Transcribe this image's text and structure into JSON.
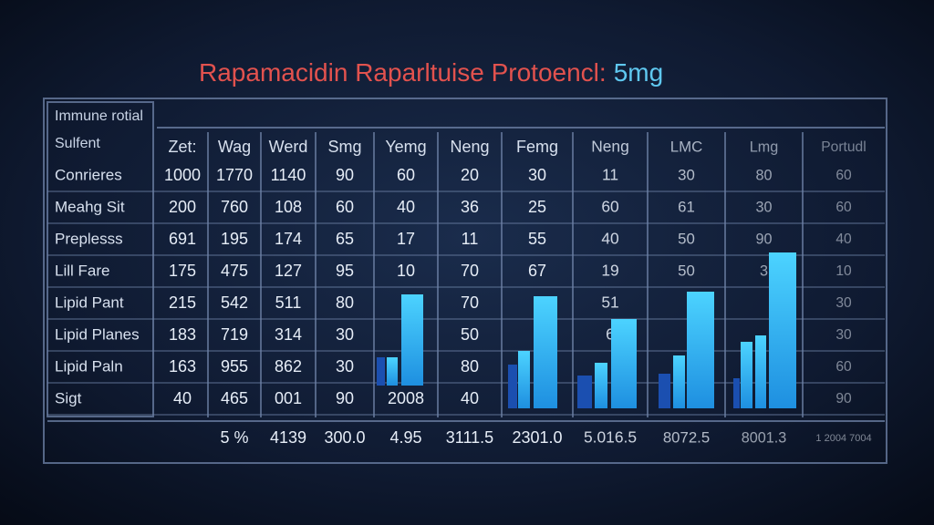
{
  "title": {
    "main": "Rapamacidin Raparltuise Protoencl:",
    "dose": "5mg"
  },
  "table": {
    "corner": [
      "Immune rotial",
      "Sulfent"
    ],
    "columns": [
      "Zet:",
      "Wag",
      "Werd",
      "Smg",
      "Yemg",
      "Neng",
      "Femg",
      "Neng",
      "LMC",
      "Lmg",
      "Portudl"
    ],
    "rows": [
      {
        "label": "Conrieres",
        "cells": [
          "1000",
          "1770",
          "1140",
          "90",
          "60",
          "20",
          "30",
          "11",
          "30",
          "80",
          "60"
        ]
      },
      {
        "label": "Meahg Sit",
        "cells": [
          "200",
          "760",
          "108",
          "60",
          "40",
          "36",
          "25",
          "60",
          "61",
          "30",
          "60"
        ]
      },
      {
        "label": "Preplesss",
        "cells": [
          "691",
          "195",
          "174",
          "65",
          "17",
          "11",
          "55",
          "40",
          "50",
          "90",
          "40"
        ]
      },
      {
        "label": "Lill Fare",
        "cells": [
          "175",
          "475",
          "127",
          "95",
          "10",
          "70",
          "67",
          "19",
          "50",
          "3",
          "10"
        ]
      },
      {
        "label": "Lipid Pant",
        "cells": [
          "215",
          "542",
          "511",
          "80",
          null,
          "70",
          null,
          "51",
          null,
          null,
          "30"
        ]
      },
      {
        "label": "Lipid Planes",
        "cells": [
          "183",
          "719",
          "314",
          "30",
          null,
          "50",
          null,
          "6",
          null,
          null,
          "30"
        ]
      },
      {
        "label": "Lipid Paln",
        "cells": [
          "163",
          "955",
          "862",
          "30",
          null,
          "80",
          null,
          null,
          null,
          null,
          "60"
        ]
      },
      {
        "label": "Sigt",
        "cells": [
          "40",
          "465",
          "001",
          "90",
          "2008",
          "40",
          null,
          null,
          null,
          null,
          "90"
        ]
      }
    ],
    "footer": [
      null,
      "5 %",
      "4139",
      "300.0",
      "4.95",
      "3111.5",
      "2301.0",
      "5.016.5",
      "8072.5",
      "8001.3",
      "1 2004 7004"
    ]
  }
}
